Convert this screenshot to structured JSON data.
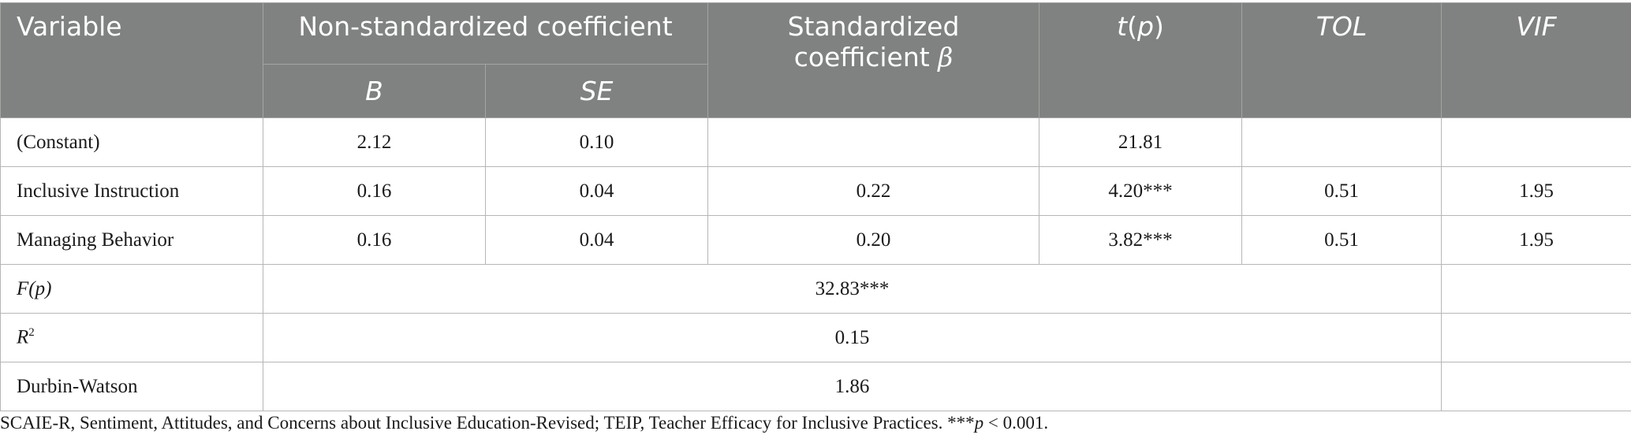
{
  "header": {
    "variable": "Variable",
    "non_std": "Non-standardized coefficient",
    "b": "B",
    "se": "SE",
    "std_line1": "Standardized",
    "std_line2": "coefficient",
    "beta": "β",
    "t_main": "t",
    "t_p": "p",
    "tol": "TOL",
    "vif": "VIF"
  },
  "rows": [
    {
      "variable": "(Constant)",
      "b": "2.12",
      "se": "0.10",
      "beta": "",
      "t": "21.81",
      "tol": "",
      "vif": ""
    },
    {
      "variable": "Inclusive Instruction",
      "b": "0.16",
      "se": "0.04",
      "beta": "0.22",
      "t": "4.20***",
      "tol": "0.51",
      "vif": "1.95"
    },
    {
      "variable": "Managing Behavior",
      "b": "0.16",
      "se": "0.04",
      "beta": "0.20",
      "t": "3.82***",
      "tol": "0.51",
      "vif": "1.95"
    }
  ],
  "stats": [
    {
      "label": "F(p)",
      "value": "32.83***"
    },
    {
      "label_main": "R",
      "label_sup": "2",
      "value": "0.15"
    },
    {
      "label": "Durbin-Watson",
      "value": "1.86"
    }
  ],
  "note": {
    "text": "SCAIE-R, Sentiment, Attitudes, and Concerns about Inclusive Education-Revised; TEIP, Teacher Efficacy for Inclusive Practices. ***",
    "p": "p",
    "tail": " < 0.001."
  }
}
